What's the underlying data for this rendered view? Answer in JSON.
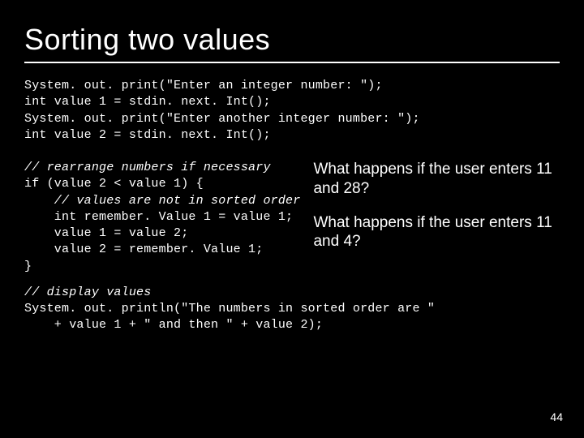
{
  "title": "Sorting two values",
  "colors": {
    "background": "#000000",
    "text": "#ffffff",
    "rule": "#ffffff"
  },
  "fonts": {
    "title_family": "Trebuchet MS, Verdana, Arial, sans-serif",
    "title_size_pt": 27,
    "body_family": "Trebuchet MS, Verdana, Arial, sans-serif",
    "body_size_pt": 14,
    "code_family": "Courier New, monospace",
    "code_size_pt": 11
  },
  "code_block1": {
    "l1": "System. out. print(\"Enter an integer number: \");",
    "l2": "int value 1 = stdin. next. Int();",
    "l3": "System. out. print(\"Enter another integer number: \");",
    "l4": "int value 2 = stdin. next. Int();"
  },
  "code_block2": {
    "c1": "// rearrange numbers if necessary",
    "l1": "if (value 2 < value 1) {",
    "c2": "    // values are not in sorted order",
    "l2": "    int remember. Value 1 = value 1;",
    "l3": "    value 1 = value 2;",
    "l4": "    value 2 = remember. Value 1;",
    "l5": "}"
  },
  "questions": {
    "q1": "What happens if the user enters 11 and 28?",
    "q2": "What happens if the user enters 11 and 4?"
  },
  "code_block3": {
    "c1": "// display values",
    "l1": "System. out. println(\"The numbers in sorted order are \"",
    "l2": "    + value 1 + \" and then \" + value 2);"
  },
  "page_number": "44"
}
